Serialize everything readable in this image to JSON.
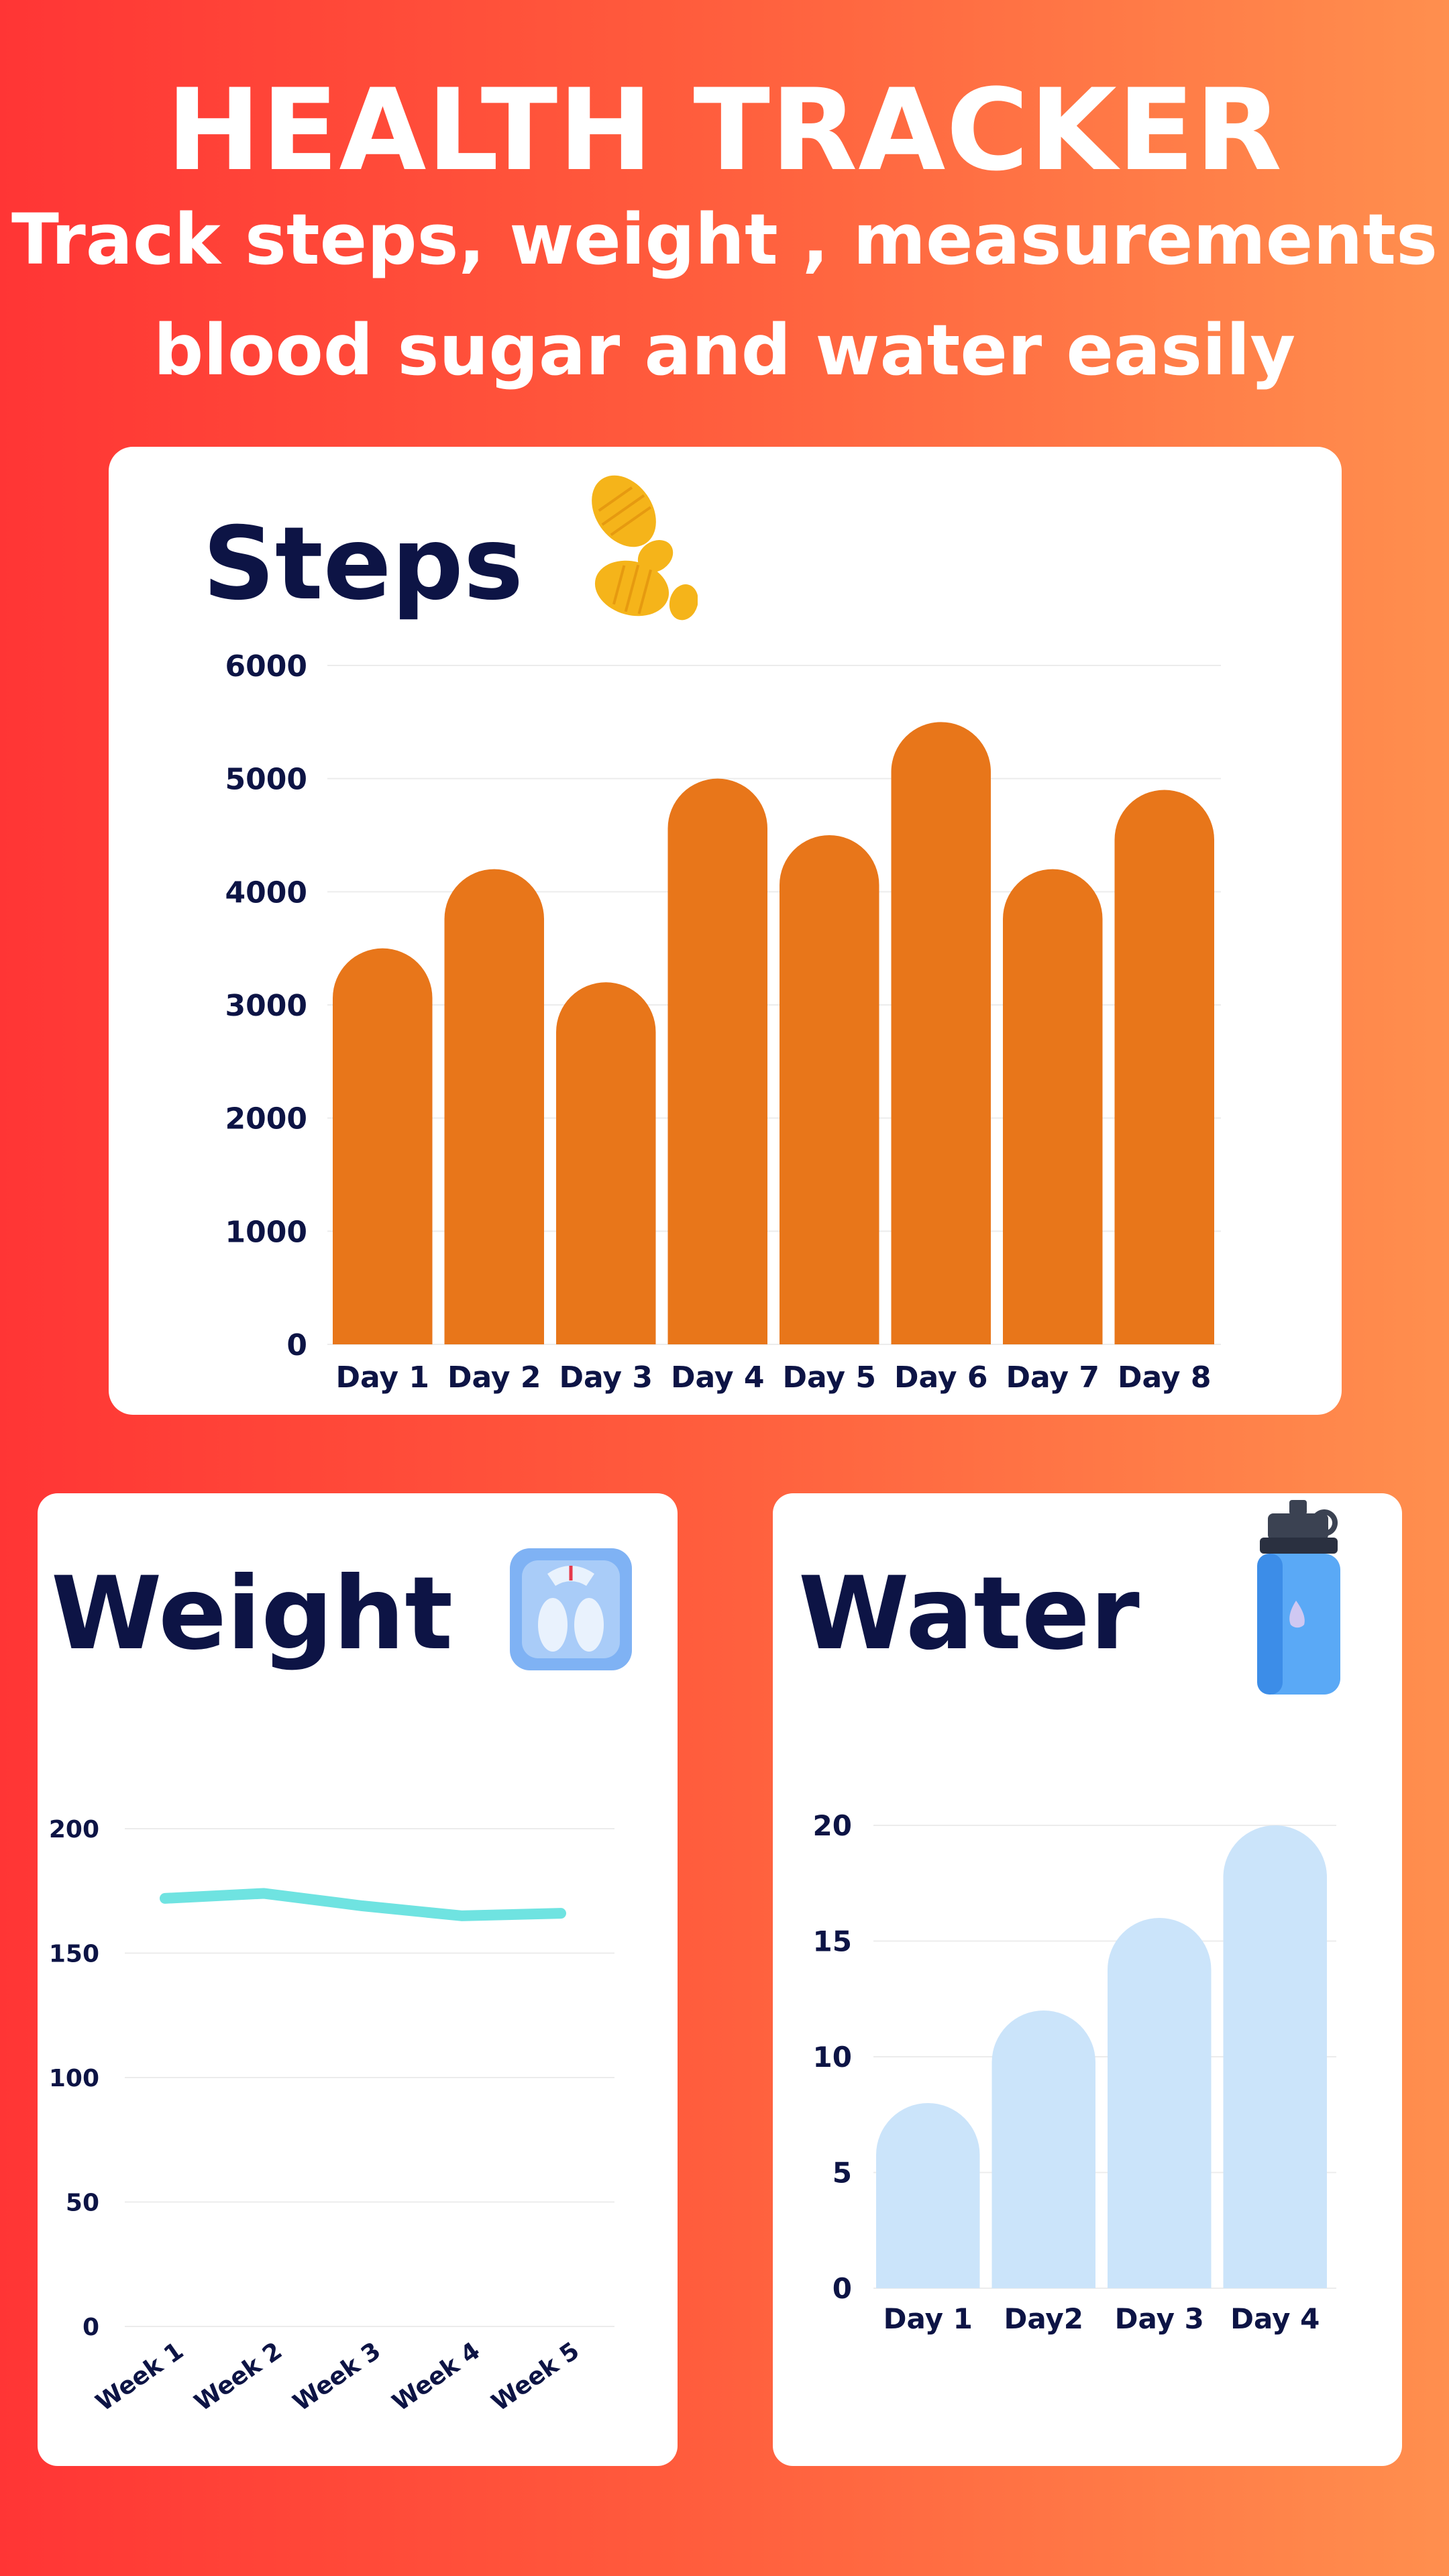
{
  "header": {
    "title": "HEALTH TRACKER",
    "subtitle_line1": "Track steps, weight , measurements",
    "subtitle_line2": "blood sugar and water easily"
  },
  "icons": {
    "steps": "footprints-icon",
    "weight": "weighing-scale-icon",
    "water": "water-bottle-icon"
  },
  "colors": {
    "background_start": "#ff3535",
    "background_end": "#ff8f4e",
    "steps_bar": "#e8761a",
    "weight_line": "#6fe3e1",
    "water_bar": "#cbe4fa",
    "text_dark": "#0d1445"
  },
  "chart_data": [
    {
      "id": "steps",
      "type": "bar",
      "title": "Steps",
      "categories": [
        "Day 1",
        "Day 2",
        "Day 3",
        "Day 4",
        "Day 5",
        "Day 6",
        "Day 7",
        "Day 8"
      ],
      "values": [
        3500,
        4200,
        3200,
        5000,
        4500,
        5500,
        4200,
        4900
      ],
      "ylim": [
        0,
        6000
      ],
      "yticks": [
        0,
        1000,
        2000,
        3000,
        4000,
        5000,
        6000
      ],
      "grid": true,
      "legend": "none"
    },
    {
      "id": "weight",
      "type": "line",
      "title": "Weight",
      "categories": [
        "Week 1",
        "Week 2",
        "Week 3",
        "Week 4",
        "Week 5"
      ],
      "values": [
        172,
        174,
        169,
        165,
        166
      ],
      "ylim": [
        0,
        200
      ],
      "yticks": [
        0,
        50,
        100,
        150,
        200
      ],
      "grid": true,
      "legend": "none"
    },
    {
      "id": "water",
      "type": "bar",
      "title": "Water",
      "categories": [
        "Day 1",
        "Day2",
        "Day 3",
        "Day 4"
      ],
      "values": [
        8,
        12,
        16,
        20
      ],
      "ylim": [
        0,
        20
      ],
      "yticks": [
        0,
        5,
        10,
        15,
        20
      ],
      "grid": true,
      "legend": "none"
    }
  ]
}
